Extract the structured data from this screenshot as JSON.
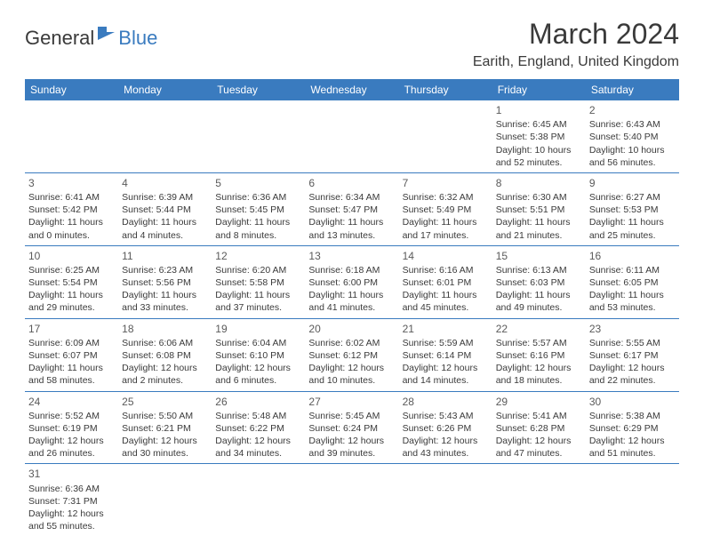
{
  "logo": {
    "general": "General",
    "blue": "Blue"
  },
  "title": "March 2024",
  "location": "Earith, England, United Kingdom",
  "colors": {
    "header_bg": "#3a7bbf",
    "header_text": "#ffffff",
    "text": "#3a3a3a",
    "border": "#3a7bbf",
    "background": "#ffffff"
  },
  "typography": {
    "title_fontsize": 32,
    "location_fontsize": 16,
    "dayheader_fontsize": 12,
    "cell_fontsize": 10.5,
    "daynum_fontsize": 12
  },
  "day_names": [
    "Sunday",
    "Monday",
    "Tuesday",
    "Wednesday",
    "Thursday",
    "Friday",
    "Saturday"
  ],
  "weeks": [
    [
      null,
      null,
      null,
      null,
      null,
      {
        "day": "1",
        "sunrise": "Sunrise: 6:45 AM",
        "sunset": "Sunset: 5:38 PM",
        "daylight": "Daylight: 10 hours and 52 minutes."
      },
      {
        "day": "2",
        "sunrise": "Sunrise: 6:43 AM",
        "sunset": "Sunset: 5:40 PM",
        "daylight": "Daylight: 10 hours and 56 minutes."
      }
    ],
    [
      {
        "day": "3",
        "sunrise": "Sunrise: 6:41 AM",
        "sunset": "Sunset: 5:42 PM",
        "daylight": "Daylight: 11 hours and 0 minutes."
      },
      {
        "day": "4",
        "sunrise": "Sunrise: 6:39 AM",
        "sunset": "Sunset: 5:44 PM",
        "daylight": "Daylight: 11 hours and 4 minutes."
      },
      {
        "day": "5",
        "sunrise": "Sunrise: 6:36 AM",
        "sunset": "Sunset: 5:45 PM",
        "daylight": "Daylight: 11 hours and 8 minutes."
      },
      {
        "day": "6",
        "sunrise": "Sunrise: 6:34 AM",
        "sunset": "Sunset: 5:47 PM",
        "daylight": "Daylight: 11 hours and 13 minutes."
      },
      {
        "day": "7",
        "sunrise": "Sunrise: 6:32 AM",
        "sunset": "Sunset: 5:49 PM",
        "daylight": "Daylight: 11 hours and 17 minutes."
      },
      {
        "day": "8",
        "sunrise": "Sunrise: 6:30 AM",
        "sunset": "Sunset: 5:51 PM",
        "daylight": "Daylight: 11 hours and 21 minutes."
      },
      {
        "day": "9",
        "sunrise": "Sunrise: 6:27 AM",
        "sunset": "Sunset: 5:53 PM",
        "daylight": "Daylight: 11 hours and 25 minutes."
      }
    ],
    [
      {
        "day": "10",
        "sunrise": "Sunrise: 6:25 AM",
        "sunset": "Sunset: 5:54 PM",
        "daylight": "Daylight: 11 hours and 29 minutes."
      },
      {
        "day": "11",
        "sunrise": "Sunrise: 6:23 AM",
        "sunset": "Sunset: 5:56 PM",
        "daylight": "Daylight: 11 hours and 33 minutes."
      },
      {
        "day": "12",
        "sunrise": "Sunrise: 6:20 AM",
        "sunset": "Sunset: 5:58 PM",
        "daylight": "Daylight: 11 hours and 37 minutes."
      },
      {
        "day": "13",
        "sunrise": "Sunrise: 6:18 AM",
        "sunset": "Sunset: 6:00 PM",
        "daylight": "Daylight: 11 hours and 41 minutes."
      },
      {
        "day": "14",
        "sunrise": "Sunrise: 6:16 AM",
        "sunset": "Sunset: 6:01 PM",
        "daylight": "Daylight: 11 hours and 45 minutes."
      },
      {
        "day": "15",
        "sunrise": "Sunrise: 6:13 AM",
        "sunset": "Sunset: 6:03 PM",
        "daylight": "Daylight: 11 hours and 49 minutes."
      },
      {
        "day": "16",
        "sunrise": "Sunrise: 6:11 AM",
        "sunset": "Sunset: 6:05 PM",
        "daylight": "Daylight: 11 hours and 53 minutes."
      }
    ],
    [
      {
        "day": "17",
        "sunrise": "Sunrise: 6:09 AM",
        "sunset": "Sunset: 6:07 PM",
        "daylight": "Daylight: 11 hours and 58 minutes."
      },
      {
        "day": "18",
        "sunrise": "Sunrise: 6:06 AM",
        "sunset": "Sunset: 6:08 PM",
        "daylight": "Daylight: 12 hours and 2 minutes."
      },
      {
        "day": "19",
        "sunrise": "Sunrise: 6:04 AM",
        "sunset": "Sunset: 6:10 PM",
        "daylight": "Daylight: 12 hours and 6 minutes."
      },
      {
        "day": "20",
        "sunrise": "Sunrise: 6:02 AM",
        "sunset": "Sunset: 6:12 PM",
        "daylight": "Daylight: 12 hours and 10 minutes."
      },
      {
        "day": "21",
        "sunrise": "Sunrise: 5:59 AM",
        "sunset": "Sunset: 6:14 PM",
        "daylight": "Daylight: 12 hours and 14 minutes."
      },
      {
        "day": "22",
        "sunrise": "Sunrise: 5:57 AM",
        "sunset": "Sunset: 6:16 PM",
        "daylight": "Daylight: 12 hours and 18 minutes."
      },
      {
        "day": "23",
        "sunrise": "Sunrise: 5:55 AM",
        "sunset": "Sunset: 6:17 PM",
        "daylight": "Daylight: 12 hours and 22 minutes."
      }
    ],
    [
      {
        "day": "24",
        "sunrise": "Sunrise: 5:52 AM",
        "sunset": "Sunset: 6:19 PM",
        "daylight": "Daylight: 12 hours and 26 minutes."
      },
      {
        "day": "25",
        "sunrise": "Sunrise: 5:50 AM",
        "sunset": "Sunset: 6:21 PM",
        "daylight": "Daylight: 12 hours and 30 minutes."
      },
      {
        "day": "26",
        "sunrise": "Sunrise: 5:48 AM",
        "sunset": "Sunset: 6:22 PM",
        "daylight": "Daylight: 12 hours and 34 minutes."
      },
      {
        "day": "27",
        "sunrise": "Sunrise: 5:45 AM",
        "sunset": "Sunset: 6:24 PM",
        "daylight": "Daylight: 12 hours and 39 minutes."
      },
      {
        "day": "28",
        "sunrise": "Sunrise: 5:43 AM",
        "sunset": "Sunset: 6:26 PM",
        "daylight": "Daylight: 12 hours and 43 minutes."
      },
      {
        "day": "29",
        "sunrise": "Sunrise: 5:41 AM",
        "sunset": "Sunset: 6:28 PM",
        "daylight": "Daylight: 12 hours and 47 minutes."
      },
      {
        "day": "30",
        "sunrise": "Sunrise: 5:38 AM",
        "sunset": "Sunset: 6:29 PM",
        "daylight": "Daylight: 12 hours and 51 minutes."
      }
    ],
    [
      {
        "day": "31",
        "sunrise": "Sunrise: 6:36 AM",
        "sunset": "Sunset: 7:31 PM",
        "daylight": "Daylight: 12 hours and 55 minutes."
      },
      null,
      null,
      null,
      null,
      null,
      null
    ]
  ]
}
